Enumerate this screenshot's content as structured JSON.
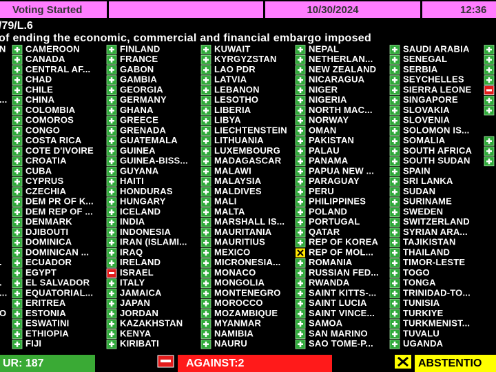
{
  "header": {
    "status": "Voting Started",
    "date": "10/30/2024",
    "time": "12:36",
    "document": "/79/L.6",
    "subject": "of ending the economic, commercial and financial embargo imposed"
  },
  "board": {
    "left_edge": [
      {
        "name": "N"
      },
      null,
      null,
      null,
      null,
      {
        "name": "..."
      },
      null,
      null,
      null,
      null,
      null,
      null,
      null,
      null,
      null,
      null,
      null,
      null,
      null,
      null,
      null,
      {
        "name": "."
      },
      null,
      {
        "name": "."
      },
      {
        "name": "..."
      },
      null,
      {
        "name": "O"
      },
      null,
      null,
      null
    ],
    "columns": [
      [
        {
          "name": "CAMEROON",
          "vote": "yes"
        },
        {
          "name": "CANADA",
          "vote": "yes"
        },
        {
          "name": "CENTRAL AF...",
          "vote": "yes"
        },
        {
          "name": "CHAD",
          "vote": "yes"
        },
        {
          "name": "CHILE",
          "vote": "yes"
        },
        {
          "name": "CHINA",
          "vote": "yes"
        },
        {
          "name": "COLOMBIA",
          "vote": "yes"
        },
        {
          "name": "COMOROS",
          "vote": "yes"
        },
        {
          "name": "CONGO",
          "vote": "yes"
        },
        {
          "name": "COSTA RICA",
          "vote": "yes"
        },
        {
          "name": "COTE D'IVOIRE",
          "vote": "yes"
        },
        {
          "name": "CROATIA",
          "vote": "yes"
        },
        {
          "name": "CUBA",
          "vote": "yes"
        },
        {
          "name": "CYPRUS",
          "vote": "yes"
        },
        {
          "name": "CZECHIA",
          "vote": "yes"
        },
        {
          "name": "DEM PR OF K...",
          "vote": "yes"
        },
        {
          "name": "DEM REP OF ...",
          "vote": "yes"
        },
        {
          "name": "DENMARK",
          "vote": "yes"
        },
        {
          "name": "DJIBOUTI",
          "vote": "yes"
        },
        {
          "name": "DOMINICA",
          "vote": "yes"
        },
        {
          "name": "DOMINICAN ...",
          "vote": "yes"
        },
        {
          "name": "ECUADOR",
          "vote": "yes"
        },
        {
          "name": "EGYPT",
          "vote": "yes"
        },
        {
          "name": "EL SALVADOR",
          "vote": "yes"
        },
        {
          "name": "EQUATORIAL...",
          "vote": "yes"
        },
        {
          "name": "ERITREA",
          "vote": "yes"
        },
        {
          "name": "ESTONIA",
          "vote": "yes"
        },
        {
          "name": "ESWATINI",
          "vote": "yes"
        },
        {
          "name": "ETHIOPIA",
          "vote": "yes"
        },
        {
          "name": "FIJI",
          "vote": "yes"
        }
      ],
      [
        {
          "name": "FINLAND",
          "vote": "yes"
        },
        {
          "name": "FRANCE",
          "vote": "yes"
        },
        {
          "name": "GABON",
          "vote": "yes"
        },
        {
          "name": "GAMBIA",
          "vote": "yes"
        },
        {
          "name": "GEORGIA",
          "vote": "yes"
        },
        {
          "name": "GERMANY",
          "vote": "yes"
        },
        {
          "name": "GHANA",
          "vote": "yes"
        },
        {
          "name": "GREECE",
          "vote": "yes"
        },
        {
          "name": "GRENADA",
          "vote": "yes"
        },
        {
          "name": "GUATEMALA",
          "vote": "yes"
        },
        {
          "name": "GUINEA",
          "vote": "yes"
        },
        {
          "name": "GUINEA-BISS...",
          "vote": "yes"
        },
        {
          "name": "GUYANA",
          "vote": "yes"
        },
        {
          "name": "HAITI",
          "vote": "yes"
        },
        {
          "name": "HONDURAS",
          "vote": "yes"
        },
        {
          "name": "HUNGARY",
          "vote": "yes"
        },
        {
          "name": "ICELAND",
          "vote": "yes"
        },
        {
          "name": "INDIA",
          "vote": "yes"
        },
        {
          "name": "INDONESIA",
          "vote": "yes"
        },
        {
          "name": "IRAN (ISLAMI...",
          "vote": "yes"
        },
        {
          "name": "IRAQ",
          "vote": "yes"
        },
        {
          "name": "IRELAND",
          "vote": "yes"
        },
        {
          "name": "ISRAEL",
          "vote": "no"
        },
        {
          "name": "ITALY",
          "vote": "yes"
        },
        {
          "name": "JAMAICA",
          "vote": "yes"
        },
        {
          "name": "JAPAN",
          "vote": "yes"
        },
        {
          "name": "JORDAN",
          "vote": "yes"
        },
        {
          "name": "KAZAKHSTAN",
          "vote": "yes"
        },
        {
          "name": "KENYA",
          "vote": "yes"
        },
        {
          "name": "KIRIBATI",
          "vote": "yes"
        }
      ],
      [
        {
          "name": "KUWAIT",
          "vote": "yes"
        },
        {
          "name": "KYRGYZSTAN",
          "vote": "yes"
        },
        {
          "name": "LAO PDR",
          "vote": "yes"
        },
        {
          "name": "LATVIA",
          "vote": "yes"
        },
        {
          "name": "LEBANON",
          "vote": "yes"
        },
        {
          "name": "LESOTHO",
          "vote": "yes"
        },
        {
          "name": "LIBERIA",
          "vote": "yes"
        },
        {
          "name": "LIBYA",
          "vote": "yes"
        },
        {
          "name": "LIECHTENSTEIN",
          "vote": "yes"
        },
        {
          "name": "LITHUANIA",
          "vote": "yes"
        },
        {
          "name": "LUXEMBOURG",
          "vote": "yes"
        },
        {
          "name": "MADAGASCAR",
          "vote": "yes"
        },
        {
          "name": "MALAWI",
          "vote": "yes"
        },
        {
          "name": "MALAYSIA",
          "vote": "yes"
        },
        {
          "name": "MALDIVES",
          "vote": "yes"
        },
        {
          "name": "MALI",
          "vote": "yes"
        },
        {
          "name": "MALTA",
          "vote": "yes"
        },
        {
          "name": "MARSHALL IS...",
          "vote": "yes"
        },
        {
          "name": "MAURITANIA",
          "vote": "yes"
        },
        {
          "name": "MAURITIUS",
          "vote": "yes"
        },
        {
          "name": "MEXICO",
          "vote": "yes"
        },
        {
          "name": "MICRONESIA...",
          "vote": "yes"
        },
        {
          "name": "MONACO",
          "vote": "yes"
        },
        {
          "name": "MONGOLIA",
          "vote": "yes"
        },
        {
          "name": "MONTENEGRO",
          "vote": "yes"
        },
        {
          "name": "MOROCCO",
          "vote": "yes"
        },
        {
          "name": "MOZAMBIQUE",
          "vote": "yes"
        },
        {
          "name": "MYANMAR",
          "vote": "yes"
        },
        {
          "name": "NAMIBIA",
          "vote": "yes"
        },
        {
          "name": "NAURU",
          "vote": "yes"
        }
      ],
      [
        {
          "name": "NEPAL",
          "vote": "yes"
        },
        {
          "name": "NETHERLAN...",
          "vote": "yes"
        },
        {
          "name": "NEW ZEALAND",
          "vote": "yes"
        },
        {
          "name": "NICARAGUA",
          "vote": "yes"
        },
        {
          "name": "NIGER",
          "vote": "yes"
        },
        {
          "name": "NIGERIA",
          "vote": "yes"
        },
        {
          "name": "NORTH MAC...",
          "vote": "yes"
        },
        {
          "name": "NORWAY",
          "vote": "yes"
        },
        {
          "name": "OMAN",
          "vote": "yes"
        },
        {
          "name": "PAKISTAN",
          "vote": "yes"
        },
        {
          "name": "PALAU",
          "vote": "yes"
        },
        {
          "name": "PANAMA",
          "vote": "yes"
        },
        {
          "name": "PAPUA NEW ...",
          "vote": "yes"
        },
        {
          "name": "PARAGUAY",
          "vote": "yes"
        },
        {
          "name": "PERU",
          "vote": "yes"
        },
        {
          "name": "PHILIPPINES",
          "vote": "yes"
        },
        {
          "name": "POLAND",
          "vote": "yes"
        },
        {
          "name": "PORTUGAL",
          "vote": "yes"
        },
        {
          "name": "QATAR",
          "vote": "yes"
        },
        {
          "name": "REP OF KOREA",
          "vote": "yes"
        },
        {
          "name": "REP OF MOL...",
          "vote": "abstain"
        },
        {
          "name": "ROMANIA",
          "vote": "yes"
        },
        {
          "name": "RUSSIAN FED...",
          "vote": "yes"
        },
        {
          "name": "RWANDA",
          "vote": "yes"
        },
        {
          "name": "SAINT KITTS-...",
          "vote": "yes"
        },
        {
          "name": "SAINT LUCIA",
          "vote": "yes"
        },
        {
          "name": "SAINT VINCE...",
          "vote": "yes"
        },
        {
          "name": "SAMOA",
          "vote": "yes"
        },
        {
          "name": "SAN MARINO",
          "vote": "yes"
        },
        {
          "name": "SAO TOME-P...",
          "vote": "yes"
        }
      ],
      [
        {
          "name": "SAUDI ARABIA",
          "vote": "yes"
        },
        {
          "name": "SENEGAL",
          "vote": "yes"
        },
        {
          "name": "SERBIA",
          "vote": "yes"
        },
        {
          "name": "SEYCHELLES",
          "vote": "yes"
        },
        {
          "name": "SIERRA LEONE",
          "vote": "yes"
        },
        {
          "name": "SINGAPORE",
          "vote": "yes"
        },
        {
          "name": "SLOVAKIA",
          "vote": "yes"
        },
        {
          "name": "SLOVENIA",
          "vote": "yes"
        },
        {
          "name": "SOLOMON IS...",
          "vote": "yes"
        },
        {
          "name": "SOMALIA",
          "vote": "yes"
        },
        {
          "name": "SOUTH AFRICA",
          "vote": "yes"
        },
        {
          "name": "SOUTH SUDAN",
          "vote": "yes"
        },
        {
          "name": "SPAIN",
          "vote": "yes"
        },
        {
          "name": "SRI LANKA",
          "vote": "yes"
        },
        {
          "name": "SUDAN",
          "vote": "yes"
        },
        {
          "name": "SURINAME",
          "vote": "yes"
        },
        {
          "name": "SWEDEN",
          "vote": "yes"
        },
        {
          "name": "SWITZERLAND",
          "vote": "yes"
        },
        {
          "name": "SYRIAN ARA...",
          "vote": "yes"
        },
        {
          "name": "TAJIKISTAN",
          "vote": "yes"
        },
        {
          "name": "THAILAND",
          "vote": "yes"
        },
        {
          "name": "TIMOR-LESTE",
          "vote": "yes"
        },
        {
          "name": "TOGO",
          "vote": "yes"
        },
        {
          "name": "TONGA",
          "vote": "yes"
        },
        {
          "name": "TRINIDAD-TO...",
          "vote": "yes"
        },
        {
          "name": "TUNISIA",
          "vote": "yes"
        },
        {
          "name": "TURKIYE",
          "vote": "yes"
        },
        {
          "name": "TURKMENIST...",
          "vote": "yes"
        },
        {
          "name": "TUVALU",
          "vote": "yes"
        },
        {
          "name": "UGANDA",
          "vote": "yes"
        }
      ]
    ],
    "right_edge": [
      {
        "vote": "yes"
      },
      {
        "vote": "yes"
      },
      {
        "vote": "yes"
      },
      {
        "vote": "yes"
      },
      {
        "vote": "no"
      },
      {
        "vote": "yes"
      },
      {
        "vote": "yes"
      },
      null,
      null,
      {
        "vote": "yes"
      },
      {
        "vote": "yes"
      },
      {
        "vote": "yes"
      }
    ]
  },
  "totals": {
    "yes": "UR: 187",
    "no": "AGAINST:2",
    "abstain": "ABSTENTIO"
  }
}
